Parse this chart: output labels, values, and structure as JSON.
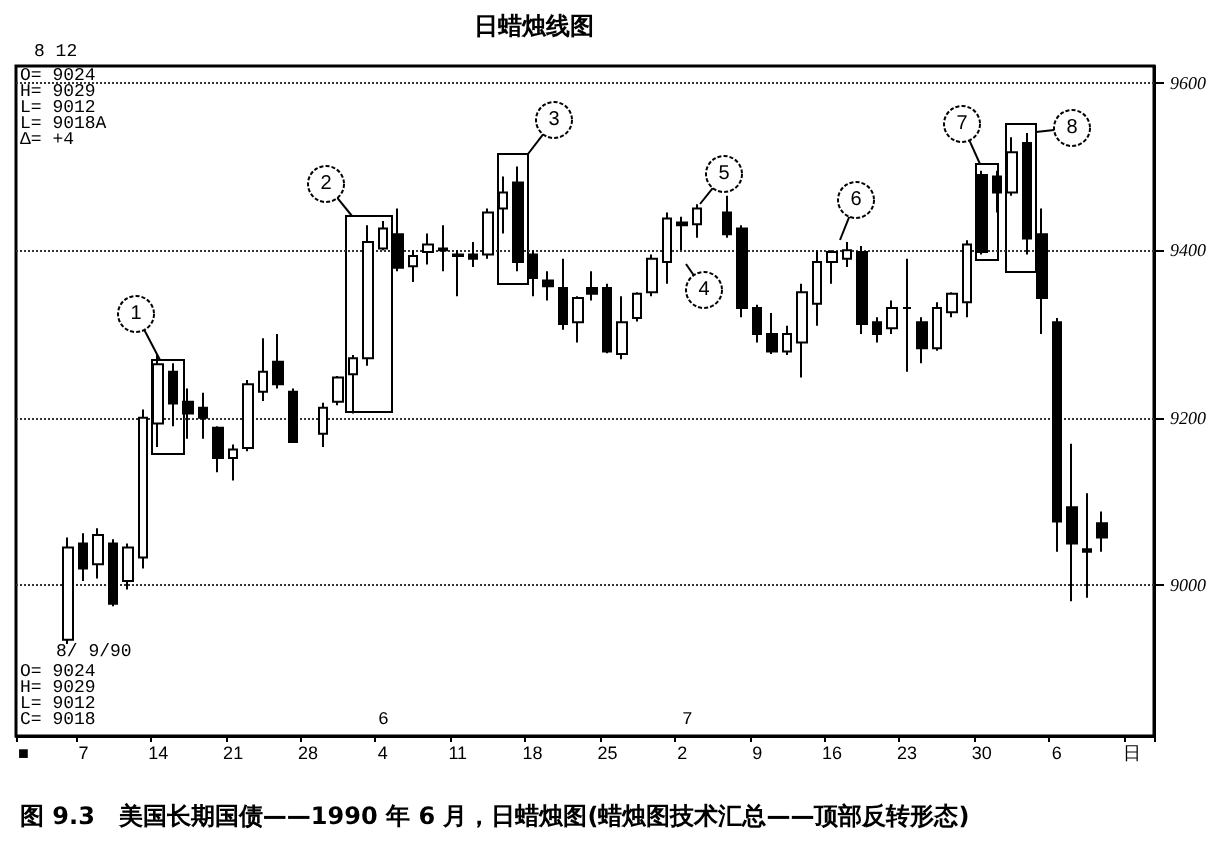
{
  "chart_data": {
    "type": "candlestick",
    "title": "日蜡烛线图",
    "categories": [
      "■",
      null,
      null,
      null,
      "7",
      null,
      null,
      null,
      null,
      "14",
      null,
      null,
      null,
      null,
      "21",
      null,
      null,
      null,
      null,
      "28",
      null,
      null,
      null,
      null,
      "4",
      null,
      null,
      null,
      null,
      "11",
      null,
      null,
      null,
      null,
      "18",
      null,
      null,
      null,
      null,
      "25",
      null,
      null,
      null,
      null,
      "2",
      null,
      null,
      null,
      null,
      "9",
      null,
      null,
      null,
      null,
      "16",
      null,
      null,
      null,
      null,
      "23",
      null,
      null,
      null,
      null,
      "30",
      null,
      null,
      null,
      null,
      "6",
      null,
      null,
      null,
      null,
      "日",
      null
    ],
    "ohlc": [
      null,
      null,
      null,
      [
        8935,
        9057,
        8930,
        9045
      ],
      [
        9050,
        9062,
        9005,
        9020
      ],
      [
        9025,
        9068,
        9008,
        9060
      ],
      [
        9050,
        9055,
        8975,
        8978
      ],
      [
        9005,
        9050,
        8995,
        9045
      ],
      [
        9033,
        9210,
        9020,
        9200
      ],
      [
        9193,
        9275,
        9165,
        9264
      ],
      [
        9255,
        9265,
        9190,
        9217
      ],
      [
        9219,
        9235,
        9175,
        9205
      ],
      [
        9212,
        9230,
        9175,
        9200
      ],
      [
        9188,
        9190,
        9135,
        9152
      ],
      [
        9152,
        9168,
        9125,
        9162
      ],
      [
        9164,
        9245,
        9160,
        9240
      ],
      [
        9231,
        9295,
        9220,
        9255
      ],
      [
        9267,
        9300,
        9235,
        9240
      ],
      [
        9231,
        9235,
        9170,
        9171
      ],
      null,
      [
        9181,
        9218,
        9165,
        9212
      ],
      [
        9219,
        9250,
        9215,
        9248
      ],
      [
        9252,
        9275,
        9205,
        9271
      ],
      [
        9271,
        9430,
        9262,
        9410
      ],
      [
        9402,
        9435,
        9400,
        9426
      ],
      [
        9419,
        9450,
        9375,
        9379
      ],
      [
        9381,
        9400,
        9362,
        9393
      ],
      [
        9398,
        9420,
        9383,
        9407
      ],
      [
        9402,
        9430,
        9375,
        9400
      ],
      [
        9395,
        9400,
        9345,
        9393
      ],
      [
        9395,
        9410,
        9380,
        9390
      ],
      [
        9395,
        9450,
        9390,
        9445
      ],
      [
        9450,
        9488,
        9420,
        9469
      ],
      [
        9481,
        9500,
        9375,
        9386
      ],
      [
        9395,
        9400,
        9345,
        9367
      ],
      [
        9364,
        9375,
        9340,
        9357
      ],
      [
        9355,
        9390,
        9305,
        9312
      ],
      [
        9314,
        9345,
        9290,
        9343
      ],
      [
        9355,
        9375,
        9340,
        9348
      ],
      [
        9355,
        9360,
        9277,
        9279
      ],
      [
        9276,
        9345,
        9270,
        9314
      ],
      [
        9319,
        9350,
        9315,
        9348
      ],
      [
        9350,
        9395,
        9345,
        9390
      ],
      [
        9386,
        9445,
        9360,
        9438
      ],
      [
        9433,
        9440,
        9400,
        9430
      ],
      [
        9431,
        9455,
        9415,
        9450
      ],
      null,
      [
        9445,
        9465,
        9415,
        9419
      ],
      [
        9426,
        9430,
        9320,
        9331
      ],
      [
        9331,
        9335,
        9290,
        9300
      ],
      [
        9300,
        9325,
        9276,
        9279
      ],
      [
        9279,
        9310,
        9275,
        9300
      ],
      [
        9290,
        9360,
        9248,
        9350
      ],
      [
        9336,
        9400,
        9310,
        9386
      ],
      [
        9386,
        9400,
        9360,
        9398
      ],
      [
        9390,
        9410,
        9380,
        9400
      ],
      [
        9398,
        9405,
        9300,
        9312
      ],
      [
        9314,
        9320,
        9290,
        9300
      ],
      [
        9307,
        9340,
        9300,
        9331
      ],
      [
        9331,
        9390,
        9255,
        9331
      ],
      [
        9314,
        9320,
        9265,
        9283
      ],
      [
        9283,
        9338,
        9280,
        9331
      ],
      [
        9326,
        9350,
        9320,
        9348
      ],
      [
        9338,
        9412,
        9320,
        9407
      ],
      [
        9490,
        9495,
        9395,
        9398
      ],
      [
        9488,
        9495,
        9445,
        9469
      ],
      [
        9469,
        9535,
        9465,
        9517
      ],
      [
        9528,
        9540,
        9395,
        9414
      ],
      [
        9419,
        9450,
        9300,
        9343
      ],
      [
        9314,
        9319,
        9040,
        9076
      ],
      [
        9093,
        9169,
        8981,
        9050
      ],
      [
        9043,
        9110,
        8985,
        9040
      ],
      [
        9074,
        9088,
        9040,
        9057
      ],
      null,
      null,
      null
    ],
    "ylim": [
      8820,
      9620
    ],
    "yticks": [
      9000,
      9200,
      9400,
      9600
    ],
    "grid": "y",
    "annotations": [
      "8 12",
      "O= 9024\nH= 9029\nL= 9012\nL= 9018A\nΔ= +4",
      "8/ 9/90",
      "O= 9024\nH= 9029\nL= 9012\nC= 9018",
      "6",
      "7",
      "1",
      "2",
      "3",
      "4",
      "5",
      "6",
      "7",
      "8",
      "图 9.3　美国长期国债——1990 年 6 月，日蜡烛图(蜡烛图技术汇总——顶部反转形态)"
    ]
  }
}
